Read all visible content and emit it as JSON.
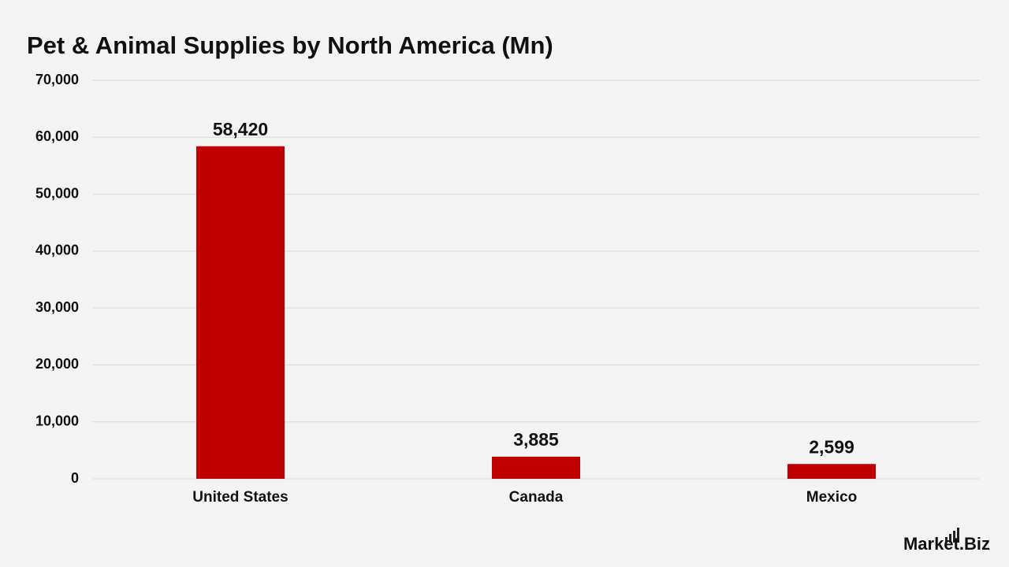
{
  "chart_data": {
    "type": "bar",
    "title": "Pet & Animal Supplies by North America (Mn)",
    "categories": [
      "United States",
      "Canada",
      "Mexico"
    ],
    "values": [
      58420,
      3885,
      2599
    ],
    "value_labels": [
      "58,420",
      "3,885",
      "2,599"
    ],
    "color": "#c00000",
    "ylim": [
      0,
      70000
    ],
    "yticks": [
      0,
      {
        "value": 10000,
        "label": "10,000"
      },
      {
        "value": 20000,
        "label": "20,000"
      },
      {
        "value": 30000,
        "label": "30,000"
      },
      {
        "value": 40000,
        "label": "40,000"
      },
      {
        "value": 50000,
        "label": "50,000"
      },
      {
        "value": 60000,
        "label": "60,000"
      },
      {
        "value": 70000,
        "label": "70,000"
      }
    ],
    "grid": true
  },
  "brand": "Market.Biz"
}
